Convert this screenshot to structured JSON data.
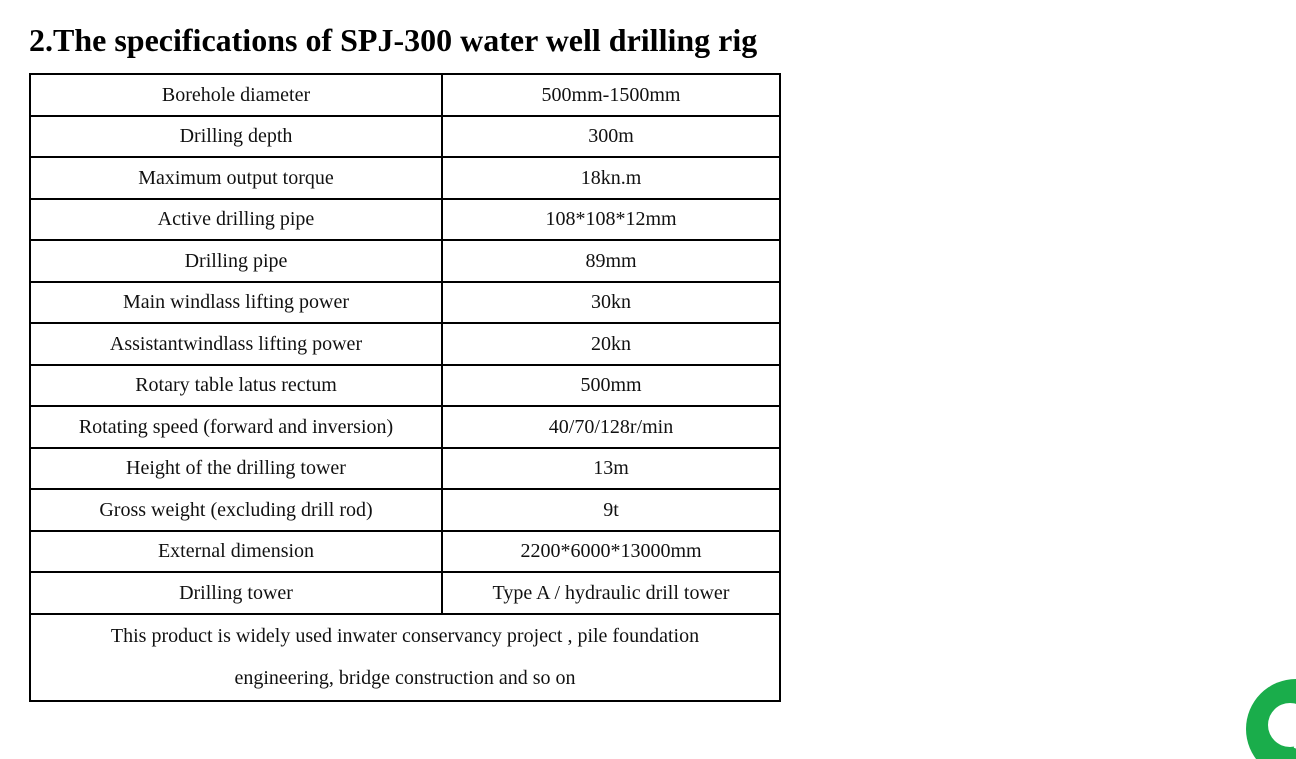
{
  "heading": "2.The specifications of SPJ-300 water well drilling rig",
  "specs": [
    {
      "label": "Borehole diameter",
      "value": "500mm-1500mm"
    },
    {
      "label": "Drilling depth",
      "value": "300m"
    },
    {
      "label": "Maximum output torque",
      "value": "18kn.m"
    },
    {
      "label": "Active drilling pipe",
      "value": "108*108*12mm"
    },
    {
      "label": "Drilling pipe",
      "value": "89mm"
    },
    {
      "label": "Main windlass lifting power",
      "value": "30kn"
    },
    {
      "label": "Assistantwindlass lifting power",
      "value": "20kn"
    },
    {
      "label": "Rotary table latus rectum",
      "value": "500mm"
    },
    {
      "label": "Rotating speed (forward and inversion)",
      "value": "40/70/128r/min"
    },
    {
      "label": "Height of the drilling tower",
      "value": "13m"
    },
    {
      "label": "Gross weight (excluding drill rod)",
      "value": "9t"
    },
    {
      "label": "External dimension",
      "value": "2200*6000*13000mm"
    },
    {
      "label": "Drilling tower",
      "value": "Type A / hydraulic drill tower"
    }
  ],
  "footer_note": "This product is widely used inwater conservancy project , pile foundation engineering, bridge construction and so on",
  "chat_widget": {
    "icon": "chat-bubble-icon",
    "color": "#1aad4b"
  }
}
